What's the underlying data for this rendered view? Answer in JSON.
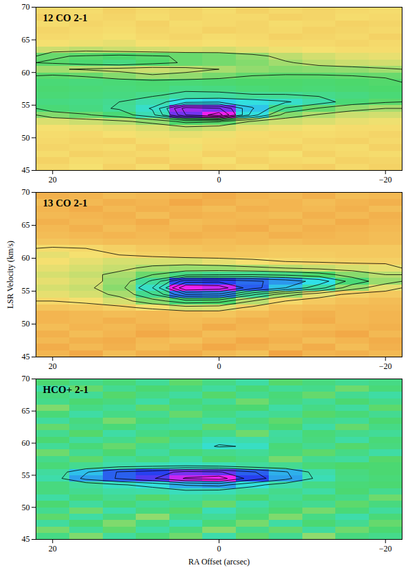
{
  "chart_data": [
    {
      "type": "heatmap",
      "title": "12 CO 2-1",
      "x": [
        20,
        16,
        12,
        8,
        4,
        0,
        -4,
        -8,
        -12,
        -16,
        -20
      ],
      "y": [
        45.5,
        46.5,
        47.5,
        48.5,
        49.5,
        50.5,
        51.5,
        52.5,
        53.5,
        54.5,
        55.5,
        56.5,
        57.5,
        58.5,
        59.5,
        60.5,
        61.5,
        62.5,
        63.5,
        64.5,
        65.5,
        66.5,
        67.5,
        68.5,
        69.5
      ],
      "z": [
        [
          0.2,
          0.4,
          0,
          0.3,
          -0.2,
          0.1,
          0.3,
          0,
          -0.1,
          0.2,
          0
        ],
        [
          0,
          0.3,
          0.2,
          -0.1,
          0.2,
          0.4,
          0,
          0.2,
          0.3,
          0,
          0.1
        ],
        [
          0.3,
          0,
          0.1,
          0.2,
          0.3,
          0,
          0.2,
          0.4,
          0,
          0.2,
          0.3
        ],
        [
          0.1,
          0.2,
          0.3,
          0,
          0.5,
          0.2,
          0.1,
          0,
          0.2,
          0.3,
          0
        ],
        [
          0.2,
          0.1,
          0,
          0.3,
          0.4,
          0.3,
          0.2,
          0.3,
          0.1,
          0,
          0.2
        ],
        [
          0.3,
          0.2,
          0.4,
          0.5,
          0.6,
          0.5,
          0.3,
          0.2,
          0.3,
          0.2,
          0.1
        ],
        [
          0.4,
          0.5,
          0.6,
          0.8,
          1.2,
          1.0,
          0.6,
          0.5,
          0.4,
          0.3,
          0.3
        ],
        [
          0.8,
          1.0,
          1.3,
          1.8,
          2.8,
          2.6,
          1.4,
          1.0,
          0.8,
          0.6,
          0.5
        ],
        [
          2.0,
          2.4,
          3.0,
          4.2,
          8.5,
          10,
          5.0,
          2.0,
          1.4,
          1.0,
          0.9
        ],
        [
          3.0,
          3.2,
          3.6,
          4.6,
          9.0,
          8.6,
          5.6,
          3.4,
          2.4,
          1.8,
          1.5
        ],
        [
          3.2,
          3.3,
          3.5,
          4.0,
          5.2,
          5.4,
          5.0,
          4.6,
          4.0,
          3.0,
          2.6
        ],
        [
          3.0,
          3.1,
          3.2,
          3.4,
          3.8,
          3.8,
          3.6,
          3.6,
          3.4,
          3.2,
          3.0
        ],
        [
          2.9,
          3.0,
          3.1,
          3.0,
          3.3,
          3.2,
          3.0,
          2.9,
          3.0,
          2.9,
          2.8
        ],
        [
          3.0,
          3.1,
          3.0,
          2.9,
          3.0,
          2.9,
          2.8,
          2.8,
          2.9,
          2.8,
          2.7
        ],
        [
          2.6,
          2.4,
          2.0,
          1.6,
          1.8,
          2.2,
          2.5,
          2.6,
          2.6,
          2.5,
          2.4
        ],
        [
          1.6,
          1.4,
          1.2,
          1.0,
          1.2,
          1.5,
          1.8,
          2.0,
          1.9,
          1.8,
          1.6
        ],
        [
          2.6,
          2.9,
          3.2,
          2.8,
          2.4,
          2.2,
          2.0,
          1.6,
          1.2,
          1.0,
          0.9
        ],
        [
          2.4,
          2.6,
          2.8,
          2.6,
          2.4,
          2.2,
          1.8,
          1.2,
          0.9,
          0.7,
          0.6
        ],
        [
          1.0,
          1.2,
          1.0,
          0.9,
          0.8,
          0.9,
          0.7,
          0.5,
          0.4,
          0.3,
          0.3
        ],
        [
          0.4,
          0.5,
          0.6,
          0.4,
          0.3,
          0.4,
          0.3,
          0.2,
          0.2,
          0.1,
          0.2
        ],
        [
          0.2,
          0.3,
          0.4,
          0.2,
          0.1,
          0.3,
          0.2,
          0,
          0.1,
          0.2,
          0
        ],
        [
          0.1,
          0.2,
          0.3,
          0.1,
          0.2,
          0,
          0.1,
          0.2,
          0,
          0.1,
          0.2
        ],
        [
          0.3,
          0.1,
          0.2,
          0,
          0.3,
          0.2,
          0.1,
          0.3,
          0.2,
          0,
          0.1
        ],
        [
          0,
          0.2,
          0.1,
          0.3,
          0.1,
          0.2,
          0.2,
          0,
          0.1,
          0.3,
          0.2
        ],
        [
          0.2,
          0.3,
          0,
          0.2,
          0.1,
          0.3,
          0,
          0.2,
          0.1,
          0.2,
          0.3
        ]
      ],
      "zlim": [
        -2,
        10
      ],
      "contours": [
        1.5,
        2.5,
        3.5,
        4.5,
        5.5,
        6.5,
        7.5,
        8.5,
        9.5
      ],
      "xlim": [
        22,
        -22
      ],
      "xticks": [
        20,
        0,
        -20
      ],
      "ylim": [
        45,
        70
      ],
      "yticks": [
        45,
        50,
        55,
        60,
        65,
        70
      ]
    },
    {
      "type": "heatmap",
      "title": "13 CO 2-1",
      "y_label": "LSR Velocity (km/s)",
      "x": [
        20,
        16,
        12,
        8,
        4,
        0,
        -4,
        -8,
        -12,
        -16,
        -20
      ],
      "y": [
        45.5,
        46.5,
        47.5,
        48.5,
        49.5,
        50.5,
        51.5,
        52.5,
        53.5,
        54.5,
        55.5,
        56.5,
        57.5,
        58.5,
        59.5,
        60.5,
        61.5,
        62.5,
        63.5,
        64.5,
        65.5,
        66.5,
        67.5,
        68.5,
        69.5
      ],
      "z": [
        [
          0.1,
          -0.2,
          0.3,
          0,
          -0.1,
          0.2,
          0.4,
          -0.3,
          0.1,
          0,
          0.2
        ],
        [
          -0.1,
          0.2,
          0,
          0.3,
          0.1,
          -0.2,
          0,
          0.2,
          -0.1,
          0.3,
          0
        ],
        [
          0.2,
          0,
          -0.1,
          0.2,
          0.4,
          0.1,
          -0.2,
          0,
          0.3,
          0.1,
          -0.1
        ],
        [
          0,
          0.3,
          0.1,
          -0.2,
          0,
          0.3,
          0.2,
          0.1,
          0,
          -0.2,
          0.2
        ],
        [
          0.3,
          0.1,
          0.2,
          0,
          0.2,
          -0.1,
          0.1,
          0.3,
          0.2,
          0.1,
          0
        ],
        [
          0.1,
          0.2,
          0,
          0.2,
          0.3,
          0.2,
          0,
          0.1,
          -0.1,
          0.2,
          0.1
        ],
        [
          0.1,
          0.2,
          0.3,
          0.2,
          0.4,
          0.5,
          0.3,
          0.1,
          0,
          0.2,
          0.1
        ],
        [
          0.5,
          0.6,
          0.8,
          1.2,
          1.6,
          1.5,
          0.8,
          0.4,
          0.3,
          0.2,
          0.2
        ],
        [
          1.0,
          1.2,
          1.6,
          2.6,
          3.6,
          3.4,
          2.0,
          1.0,
          0.6,
          0.4,
          0.3
        ],
        [
          1.4,
          1.6,
          2.2,
          4.0,
          7.0,
          6.8,
          4.2,
          2.4,
          1.4,
          0.8,
          0.6
        ],
        [
          1.6,
          1.8,
          2.6,
          5.0,
          10,
          9.6,
          7.4,
          6.0,
          4.4,
          2.4,
          1.4
        ],
        [
          1.4,
          1.6,
          2.4,
          4.2,
          7.6,
          7.8,
          7.2,
          6.6,
          5.6,
          3.6,
          2.4
        ],
        [
          1.6,
          1.8,
          2.2,
          3.0,
          3.8,
          4.0,
          4.0,
          3.8,
          3.4,
          2.6,
          2.0
        ],
        [
          1.4,
          1.6,
          1.8,
          2.2,
          2.4,
          2.4,
          2.2,
          2.0,
          1.8,
          1.6,
          1.4
        ],
        [
          1.2,
          1.4,
          1.6,
          1.6,
          1.6,
          1.4,
          1.2,
          1.0,
          0.9,
          0.8,
          0.8
        ],
        [
          1.4,
          1.2,
          1.0,
          0.8,
          0.6,
          0.6,
          0.6,
          0.7,
          0.7,
          0.6,
          0.6
        ],
        [
          1.1,
          1.0,
          0.8,
          0.6,
          0.5,
          0.4,
          0.5,
          0.6,
          0.6,
          0.6,
          0.6
        ],
        [
          0.5,
          0.4,
          0.3,
          0.3,
          0.2,
          0.3,
          0.2,
          0.3,
          0.2,
          0.2,
          0.3
        ],
        [
          0.3,
          0.2,
          0.1,
          0.2,
          0,
          0.1,
          0.2,
          0,
          0.1,
          0.2,
          0.3
        ],
        [
          0.2,
          0,
          0.3,
          0.1,
          0.2,
          0,
          -0.1,
          0.2,
          0,
          0.1,
          0.2
        ],
        [
          0,
          0.2,
          0.1,
          -0.1,
          0.3,
          0.2,
          0.1,
          0,
          0.2,
          -0.1,
          0.1
        ],
        [
          0.2,
          0.1,
          0,
          0.3,
          0,
          0.1,
          0.2,
          0.3,
          0,
          0.2,
          0
        ],
        [
          0.1,
          -0.1,
          0.2,
          0,
          0.1,
          0.3,
          0,
          0.1,
          0.2,
          0,
          0.3
        ],
        [
          0.3,
          0.2,
          0,
          0.1,
          -0.2,
          0,
          0.2,
          0.1,
          0.3,
          0.1,
          0
        ],
        [
          0,
          0.1,
          0.3,
          0.2,
          0.1,
          -0.1,
          0.1,
          0.2,
          0,
          0.3,
          0.2
        ]
      ],
      "zlim": [
        -1,
        10
      ],
      "contours": [
        1,
        2,
        3,
        4,
        5,
        6,
        7,
        8,
        9
      ],
      "xlim": [
        22,
        -22
      ],
      "xticks": [
        20,
        0,
        -20
      ],
      "ylim": [
        45,
        70
      ],
      "yticks": [
        45,
        50,
        55,
        60,
        65,
        70
      ]
    },
    {
      "type": "heatmap",
      "title": "HCO+ 2-1",
      "x_label": "RA Offset (arcsec)",
      "x": [
        20,
        16,
        12,
        8,
        4,
        0,
        -4,
        -8,
        -12,
        -16,
        -20
      ],
      "y": [
        45.5,
        46.5,
        47.5,
        48.5,
        49.5,
        50.5,
        51.5,
        52.5,
        53.5,
        54.5,
        55.5,
        56.5,
        57.5,
        58.5,
        59.5,
        60.5,
        61.5,
        62.5,
        63.5,
        64.5,
        65.5,
        66.5,
        67.5,
        68.5,
        69.5
      ],
      "z": [
        [
          0.4,
          -0.6,
          0.8,
          0.2,
          -0.4,
          1.0,
          -0.2,
          0.6,
          -0.8,
          0.3,
          0.5
        ],
        [
          -0.5,
          0.7,
          -0.2,
          0.9,
          0.3,
          -0.7,
          0.5,
          -0.3,
          0.8,
          -0.4,
          0.1
        ],
        [
          0.8,
          0.1,
          -0.6,
          0.4,
          1.1,
          0.2,
          -0.5,
          0.9,
          0.1,
          0.6,
          -0.3
        ],
        [
          -0.2,
          0.9,
          0.3,
          -0.8,
          0.5,
          0.7,
          0.2,
          -0.6,
          0.4,
          1.0,
          0.2
        ],
        [
          0.6,
          -0.4,
          1.0,
          0.3,
          -0.1,
          1.2,
          0.5,
          0.1,
          -0.5,
          0.2,
          0.8
        ],
        [
          0.1,
          0.8,
          0.2,
          0.7,
          0.5,
          -0.3,
          0.9,
          0.4,
          0.6,
          -0.2,
          0.3
        ],
        [
          0.9,
          0.2,
          0.6,
          -0.1,
          0.8,
          0.6,
          0.1,
          0.7,
          0.2,
          0.5,
          -0.4
        ],
        [
          0.3,
          0.6,
          0.9,
          1.0,
          1.3,
          1.2,
          0.8,
          0.5,
          0.9,
          0.1,
          0.6
        ],
        [
          0.3,
          0.8,
          1.4,
          1.8,
          2.6,
          2.8,
          1.8,
          1.0,
          0.4,
          0.2,
          0.1
        ],
        [
          1.0,
          2.8,
          3.6,
          4.4,
          5.6,
          6.0,
          4.0,
          2.8,
          1.2,
          0.4,
          0.2
        ],
        [
          0.8,
          2.4,
          3.6,
          4.0,
          4.8,
          4.6,
          3.6,
          2.6,
          1.0,
          0.3,
          0.1
        ],
        [
          0.2,
          0.6,
          1.0,
          1.2,
          1.4,
          1.2,
          0.8,
          0.6,
          0.2,
          0,
          0.1
        ],
        [
          0.5,
          -0.2,
          0.7,
          0.3,
          0.9,
          0.1,
          0.4,
          -0.5,
          0.6,
          0.8,
          -0.1
        ],
        [
          -0.4,
          0.6,
          0.1,
          0.8,
          0.2,
          0.5,
          0.7,
          0.3,
          -0.2,
          0.4,
          0.9
        ],
        [
          0.7,
          0.2,
          -0.3,
          0.5,
          0.9,
          1.6,
          1.4,
          0.2,
          0.6,
          -0.1,
          0.3
        ],
        [
          0.1,
          0.8,
          0.5,
          -0.2,
          0.6,
          1.2,
          1.0,
          0.7,
          0.3,
          0.9,
          0.2
        ],
        [
          0.6,
          -0.1,
          0.9,
          0.4,
          0.1,
          0.5,
          -0.4,
          0.8,
          0.2,
          0.5,
          0.7
        ],
        [
          -0.3,
          0.5,
          0.2,
          0.7,
          0.8,
          -0.2,
          0.6,
          0.1,
          0.9,
          -0.3,
          0.4
        ],
        [
          0.8,
          0.3,
          -0.5,
          0.2,
          0.6,
          0.9,
          0.3,
          -0.2,
          0.5,
          0.7,
          0.1
        ],
        [
          0.2,
          0.9,
          0.4,
          0.6,
          -0.3,
          0.4,
          0.8,
          0.6,
          -0.1,
          0.2,
          0.6
        ],
        [
          -0.6,
          0.4,
          0.7,
          -0.2,
          0.5,
          0.2,
          0.1,
          0.9,
          0.4,
          0.8,
          -0.2
        ],
        [
          0.5,
          0.1,
          0.3,
          0.9,
          0.2,
          0.7,
          -0.4,
          0.3,
          0.7,
          0.1,
          0.5
        ],
        [
          0.3,
          0.7,
          -0.1,
          0.4,
          0.8,
          -0.1,
          0.6,
          0.2,
          -0.3,
          0.6,
          0.9
        ],
        [
          0.9,
          -0.3,
          0.6,
          0.1,
          0.3,
          0.8,
          0.2,
          0.7,
          0.5,
          -0.4,
          0.2
        ],
        [
          0.1,
          0.5,
          0.2,
          0.7,
          -0.2,
          0.4,
          0.9,
          -0.1,
          0.3,
          0.6,
          0.4
        ]
      ],
      "zlim": [
        -4,
        6
      ],
      "contours": [
        1.5,
        2.5,
        3.5,
        4.5,
        5.5
      ],
      "xlim": [
        22,
        -22
      ],
      "xticks": [
        20,
        0,
        -20
      ],
      "ylim": [
        45,
        70
      ],
      "yticks": [
        45,
        50,
        55,
        60,
        65,
        70
      ]
    }
  ]
}
